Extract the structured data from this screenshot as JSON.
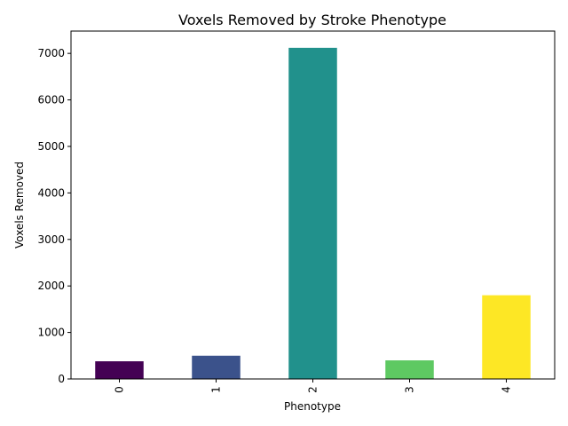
{
  "chart_data": {
    "type": "bar",
    "title": "Voxels Removed by Stroke Phenotype",
    "xlabel": "Phenotype",
    "ylabel": "Voxels Removed",
    "categories": [
      "0",
      "1",
      "2",
      "3",
      "4"
    ],
    "values": [
      380,
      500,
      7120,
      400,
      1800
    ],
    "colors": [
      "#440154",
      "#3b528b",
      "#21918c",
      "#5ec962",
      "#fde725"
    ],
    "ylim": [
      0,
      7480
    ],
    "yticks": [
      0,
      1000,
      2000,
      3000,
      4000,
      5000,
      6000,
      7000
    ],
    "xtick_rotation": -90,
    "grid": false,
    "legend": "none"
  }
}
